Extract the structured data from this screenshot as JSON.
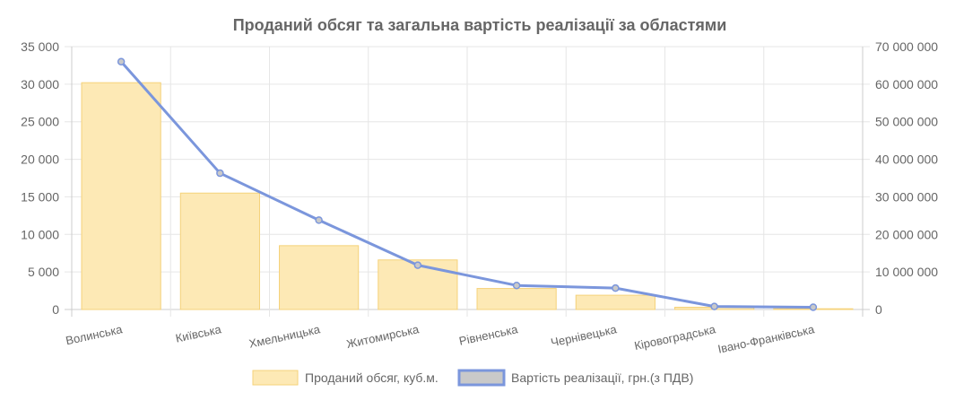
{
  "chart_data": {
    "type": "bar",
    "title": "Проданий обсяг та загальна вартість реалізації за областями",
    "categories": [
      "Волинська",
      "Київська",
      "Хмельницька",
      "Житомирська",
      "Рівненська",
      "Чернівецька",
      "Кіровоградська",
      "Івано-Франківська"
    ],
    "series": [
      {
        "name": "Проданий обсяг, куб.м.",
        "type": "bar",
        "axis": "left",
        "color": "#fde9b5",
        "border": "#f5d27a",
        "values": [
          30200,
          15500,
          8500,
          6600,
          2800,
          1900,
          300,
          100
        ]
      },
      {
        "name": "Вартість реалізації, грн.(з ПДВ)",
        "type": "line",
        "axis": "right",
        "color": "#7b96dc",
        "values": [
          66000000,
          36300000,
          23800000,
          11800000,
          6400000,
          5700000,
          800000,
          600000
        ]
      }
    ],
    "y_left": {
      "min": 0,
      "max": 35000,
      "step": 5000,
      "ticks": [
        "0",
        "5 000",
        "10 000",
        "15 000",
        "20 000",
        "25 000",
        "30 000",
        "35 000"
      ]
    },
    "y_right": {
      "min": 0,
      "max": 70000000,
      "step": 10000000,
      "ticks": [
        "0",
        "10 000 000",
        "20 000 000",
        "30 000 000",
        "40 000 000",
        "50 000 000",
        "60 000 000",
        "70 000 000"
      ]
    },
    "grid": true,
    "legend_position": "bottom",
    "legend": [
      "Проданий обсяг, куб.м.",
      "Вартість реалізації, грн.(з ПДВ)"
    ]
  }
}
